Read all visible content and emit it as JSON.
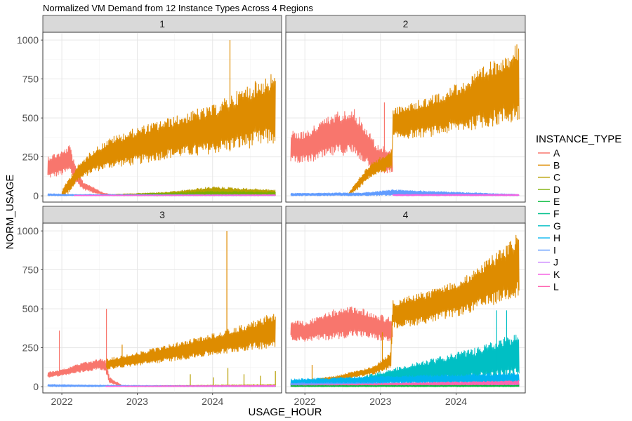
{
  "chart_data": {
    "type": "line",
    "title": "Normalized VM Demand from 12 Instance Types Across 4 Regions",
    "xlabel": "USAGE_HOUR",
    "ylabel": "NORM_USAGE",
    "x_range": [
      "2021-10-01",
      "2024-11-30"
    ],
    "xticks": [
      {
        "label": "2022",
        "date": "2022-01-01"
      },
      {
        "label": "2023",
        "date": "2023-01-01"
      },
      {
        "label": "2024",
        "date": "2024-01-01"
      }
    ],
    "ylim": [
      -40,
      1050
    ],
    "yticks": [
      0,
      250,
      500,
      750,
      1000
    ],
    "grid": true,
    "facet_layout": "2x2",
    "legend": {
      "title": "INSTANCE_TYPE",
      "position": "right",
      "entries": [
        {
          "name": "A",
          "color": "#F8766D"
        },
        {
          "name": "B",
          "color": "#DE8C00"
        },
        {
          "name": "C",
          "color": "#B79F00"
        },
        {
          "name": "D",
          "color": "#7CAE00"
        },
        {
          "name": "E",
          "color": "#00BA38"
        },
        {
          "name": "F",
          "color": "#00C08B"
        },
        {
          "name": "G",
          "color": "#00BFC4"
        },
        {
          "name": "H",
          "color": "#00B4F0"
        },
        {
          "name": "I",
          "color": "#619CFF"
        },
        {
          "name": "J",
          "color": "#C77CFF"
        },
        {
          "name": "K",
          "color": "#F564E3"
        },
        {
          "name": "L",
          "color": "#FF64B0"
        }
      ]
    },
    "panels": [
      {
        "label": "1",
        "series": [
          {
            "name": "A",
            "band": [
              {
                "x": "2021-10-25",
                "lo": 110,
                "hi": 260
              },
              {
                "x": "2022-01-01",
                "lo": 130,
                "hi": 290
              },
              {
                "x": "2022-02-10",
                "lo": 150,
                "hi": 330
              },
              {
                "x": "2022-03-05",
                "lo": 90,
                "hi": 200
              },
              {
                "x": "2022-04-15",
                "lo": 40,
                "hi": 90
              },
              {
                "x": "2022-06-01",
                "lo": 20,
                "hi": 60
              },
              {
                "x": "2022-07-20",
                "lo": 5,
                "hi": 20
              },
              {
                "x": "2022-09-15",
                "lo": 0,
                "hi": 5
              }
            ]
          },
          {
            "name": "B",
            "band": [
              {
                "x": "2022-01-01",
                "lo": 0,
                "hi": 30
              },
              {
                "x": "2022-02-01",
                "lo": 10,
                "hi": 110
              },
              {
                "x": "2022-03-15",
                "lo": 90,
                "hi": 190
              },
              {
                "x": "2022-06-01",
                "lo": 150,
                "hi": 300
              },
              {
                "x": "2022-09-01",
                "lo": 180,
                "hi": 380
              },
              {
                "x": "2023-01-01",
                "lo": 200,
                "hi": 440
              },
              {
                "x": "2023-06-01",
                "lo": 240,
                "hi": 500
              },
              {
                "x": "2024-01-01",
                "lo": 270,
                "hi": 580
              },
              {
                "x": "2024-06-01",
                "lo": 300,
                "hi": 700
              },
              {
                "x": "2024-10-31",
                "lo": 330,
                "hi": 800
              }
            ],
            "spikes": [
              {
                "x": "2024-03-25",
                "y": 1000
              },
              {
                "x": "2023-10-20",
                "y": 560
              }
            ]
          },
          {
            "name": "C",
            "band": [
              {
                "x": "2022-09-01",
                "lo": 0,
                "hi": 10
              },
              {
                "x": "2023-06-01",
                "lo": 0,
                "hi": 25
              },
              {
                "x": "2024-01-01",
                "lo": 0,
                "hi": 60
              },
              {
                "x": "2024-10-31",
                "lo": 0,
                "hi": 40
              }
            ]
          },
          {
            "name": "D",
            "band": [
              {
                "x": "2023-01-01",
                "lo": 0,
                "hi": 15
              },
              {
                "x": "2024-01-01",
                "lo": 0,
                "hi": 30
              },
              {
                "x": "2024-10-31",
                "lo": 0,
                "hi": 25
              }
            ]
          },
          {
            "name": "I",
            "band": [
              {
                "x": "2021-10-25",
                "lo": 0,
                "hi": 15
              },
              {
                "x": "2022-03-01",
                "lo": 0,
                "hi": 10
              },
              {
                "x": "2024-10-31",
                "lo": 0,
                "hi": 8
              }
            ]
          },
          {
            "name": "K",
            "band": [
              {
                "x": "2022-03-01",
                "lo": 0,
                "hi": 5
              },
              {
                "x": "2024-10-31",
                "lo": 0,
                "hi": 8
              }
            ]
          }
        ]
      },
      {
        "label": "2",
        "series": [
          {
            "name": "A",
            "band": [
              {
                "x": "2021-10-25",
                "lo": 220,
                "hi": 420
              },
              {
                "x": "2022-01-01",
                "lo": 210,
                "hi": 410
              },
              {
                "x": "2022-03-01",
                "lo": 220,
                "hi": 470
              },
              {
                "x": "2022-06-01",
                "lo": 260,
                "hi": 540
              },
              {
                "x": "2022-08-15",
                "lo": 260,
                "hi": 580
              },
              {
                "x": "2022-10-15",
                "lo": 210,
                "hi": 470
              },
              {
                "x": "2022-12-15",
                "lo": 150,
                "hi": 330
              },
              {
                "x": "2023-02-28",
                "lo": 140,
                "hi": 300
              }
            ],
            "spikes": [
              {
                "x": "2023-01-20",
                "y": 600
              }
            ]
          },
          {
            "name": "B",
            "band": [
              {
                "x": "2022-08-01",
                "lo": 0,
                "hi": 20
              },
              {
                "x": "2022-09-15",
                "lo": 40,
                "hi": 110
              },
              {
                "x": "2022-11-15",
                "lo": 120,
                "hi": 210
              },
              {
                "x": "2023-02-28",
                "lo": 170,
                "hi": 300
              },
              {
                "x": "2023-03-01",
                "lo": 360,
                "hi": 560
              },
              {
                "x": "2023-09-01",
                "lo": 380,
                "hi": 640
              },
              {
                "x": "2024-03-01",
                "lo": 420,
                "hi": 760
              },
              {
                "x": "2024-10-31",
                "lo": 470,
                "hi": 990
              }
            ]
          },
          {
            "name": "I",
            "band": [
              {
                "x": "2021-10-25",
                "lo": 0,
                "hi": 18
              },
              {
                "x": "2022-10-01",
                "lo": 0,
                "hi": 20
              },
              {
                "x": "2023-03-01",
                "lo": 0,
                "hi": 40
              },
              {
                "x": "2024-10-31",
                "lo": 0,
                "hi": 10
              }
            ]
          },
          {
            "name": "K",
            "band": [
              {
                "x": "2023-03-01",
                "lo": 0,
                "hi": 10
              },
              {
                "x": "2024-10-31",
                "lo": 0,
                "hi": 10
              }
            ]
          }
        ]
      },
      {
        "label": "3",
        "series": [
          {
            "name": "A",
            "band": [
              {
                "x": "2021-10-25",
                "lo": 60,
                "hi": 95
              },
              {
                "x": "2022-01-01",
                "lo": 70,
                "hi": 110
              },
              {
                "x": "2022-04-01",
                "lo": 90,
                "hi": 150
              },
              {
                "x": "2022-07-01",
                "lo": 110,
                "hi": 180
              },
              {
                "x": "2022-08-01",
                "lo": 100,
                "hi": 170
              },
              {
                "x": "2022-08-20",
                "lo": 20,
                "hi": 60
              },
              {
                "x": "2022-10-15",
                "lo": 5,
                "hi": 15
              }
            ],
            "spikes": [
              {
                "x": "2021-12-20",
                "y": 360
              },
              {
                "x": "2022-08-05",
                "y": 500
              }
            ]
          },
          {
            "name": "B",
            "band": [
              {
                "x": "2022-08-05",
                "lo": 110,
                "hi": 180
              },
              {
                "x": "2022-12-01",
                "lo": 130,
                "hi": 210
              },
              {
                "x": "2023-06-01",
                "lo": 160,
                "hi": 270
              },
              {
                "x": "2024-01-01",
                "lo": 200,
                "hi": 340
              },
              {
                "x": "2024-06-01",
                "lo": 230,
                "hi": 400
              },
              {
                "x": "2024-10-31",
                "lo": 250,
                "hi": 480
              }
            ],
            "spikes": [
              {
                "x": "2024-03-10",
                "y": 1000
              },
              {
                "x": "2022-10-20",
                "y": 270
              }
            ]
          },
          {
            "name": "C",
            "band": [
              {
                "x": "2022-11-01",
                "lo": 0,
                "hi": 5
              },
              {
                "x": "2024-10-31",
                "lo": 0,
                "hi": 15
              }
            ],
            "spikes": [
              {
                "x": "2023-09-15",
                "y": 80
              },
              {
                "x": "2024-01-05",
                "y": 60
              },
              {
                "x": "2024-03-15",
                "y": 120
              },
              {
                "x": "2024-06-01",
                "y": 80
              },
              {
                "x": "2024-08-20",
                "y": 70
              },
              {
                "x": "2024-10-31",
                "y": 100
              }
            ]
          },
          {
            "name": "I",
            "band": [
              {
                "x": "2021-10-25",
                "lo": 0,
                "hi": 15
              },
              {
                "x": "2022-10-01",
                "lo": 0,
                "hi": 10
              },
              {
                "x": "2024-10-31",
                "lo": 0,
                "hi": 5
              }
            ]
          },
          {
            "name": "K",
            "band": [
              {
                "x": "2022-08-01",
                "lo": 0,
                "hi": 5
              },
              {
                "x": "2024-10-31",
                "lo": 0,
                "hi": 10
              }
            ]
          }
        ]
      },
      {
        "label": "4",
        "series": [
          {
            "name": "A",
            "band": [
              {
                "x": "2021-10-25",
                "lo": 300,
                "hi": 430
              },
              {
                "x": "2022-01-01",
                "lo": 290,
                "hi": 420
              },
              {
                "x": "2022-05-01",
                "lo": 300,
                "hi": 490
              },
              {
                "x": "2022-09-01",
                "lo": 320,
                "hi": 520
              },
              {
                "x": "2022-12-01",
                "lo": 300,
                "hi": 480
              },
              {
                "x": "2023-02-28",
                "lo": 280,
                "hi": 440
              }
            ]
          },
          {
            "name": "B",
            "band": [
              {
                "x": "2021-10-25",
                "lo": 10,
                "hi": 30
              },
              {
                "x": "2022-06-01",
                "lo": 40,
                "hi": 70
              },
              {
                "x": "2022-12-01",
                "lo": 80,
                "hi": 130
              },
              {
                "x": "2023-02-20",
                "lo": 120,
                "hi": 220
              },
              {
                "x": "2023-03-01",
                "lo": 370,
                "hi": 560
              },
              {
                "x": "2023-09-01",
                "lo": 410,
                "hi": 620
              },
              {
                "x": "2024-03-01",
                "lo": 470,
                "hi": 720
              },
              {
                "x": "2024-10-31",
                "lo": 580,
                "hi": 990
              }
            ],
            "spikes": [
              {
                "x": "2022-02-05",
                "y": 140
              },
              {
                "x": "2023-01-10",
                "y": 350
              }
            ]
          },
          {
            "name": "G",
            "band": [
              {
                "x": "2022-08-01",
                "lo": 0,
                "hi": 40
              },
              {
                "x": "2023-03-01",
                "lo": 20,
                "hi": 120
              },
              {
                "x": "2023-09-01",
                "lo": 30,
                "hi": 180
              },
              {
                "x": "2024-04-01",
                "lo": 40,
                "hi": 250
              },
              {
                "x": "2024-10-31",
                "lo": 50,
                "hi": 350
              }
            ],
            "spikes": [
              {
                "x": "2024-07-15",
                "y": 490
              },
              {
                "x": "2024-09-01",
                "y": 490
              }
            ]
          },
          {
            "name": "H",
            "band": [
              {
                "x": "2021-10-25",
                "lo": 5,
                "hi": 50
              },
              {
                "x": "2022-06-01",
                "lo": 10,
                "hi": 60
              },
              {
                "x": "2023-01-01",
                "lo": 20,
                "hi": 70
              },
              {
                "x": "2024-01-01",
                "lo": 20,
                "hi": 80
              },
              {
                "x": "2024-10-31",
                "lo": 20,
                "hi": 90
              }
            ]
          },
          {
            "name": "I",
            "band": [
              {
                "x": "2021-10-25",
                "lo": 5,
                "hi": 25
              },
              {
                "x": "2024-10-31",
                "lo": 5,
                "hi": 30
              }
            ]
          },
          {
            "name": "J",
            "band": [
              {
                "x": "2023-01-01",
                "lo": 5,
                "hi": 20
              },
              {
                "x": "2024-10-31",
                "lo": 10,
                "hi": 30
              }
            ]
          },
          {
            "name": "L",
            "band": [
              {
                "x": "2021-10-25",
                "lo": 0,
                "hi": 10
              },
              {
                "x": "2024-10-31",
                "lo": 10,
                "hi": 40
              }
            ]
          },
          {
            "name": "E",
            "band": [
              {
                "x": "2021-10-25",
                "lo": 0,
                "hi": 8
              },
              {
                "x": "2024-10-31",
                "lo": 0,
                "hi": 10
              }
            ]
          }
        ]
      }
    ]
  }
}
